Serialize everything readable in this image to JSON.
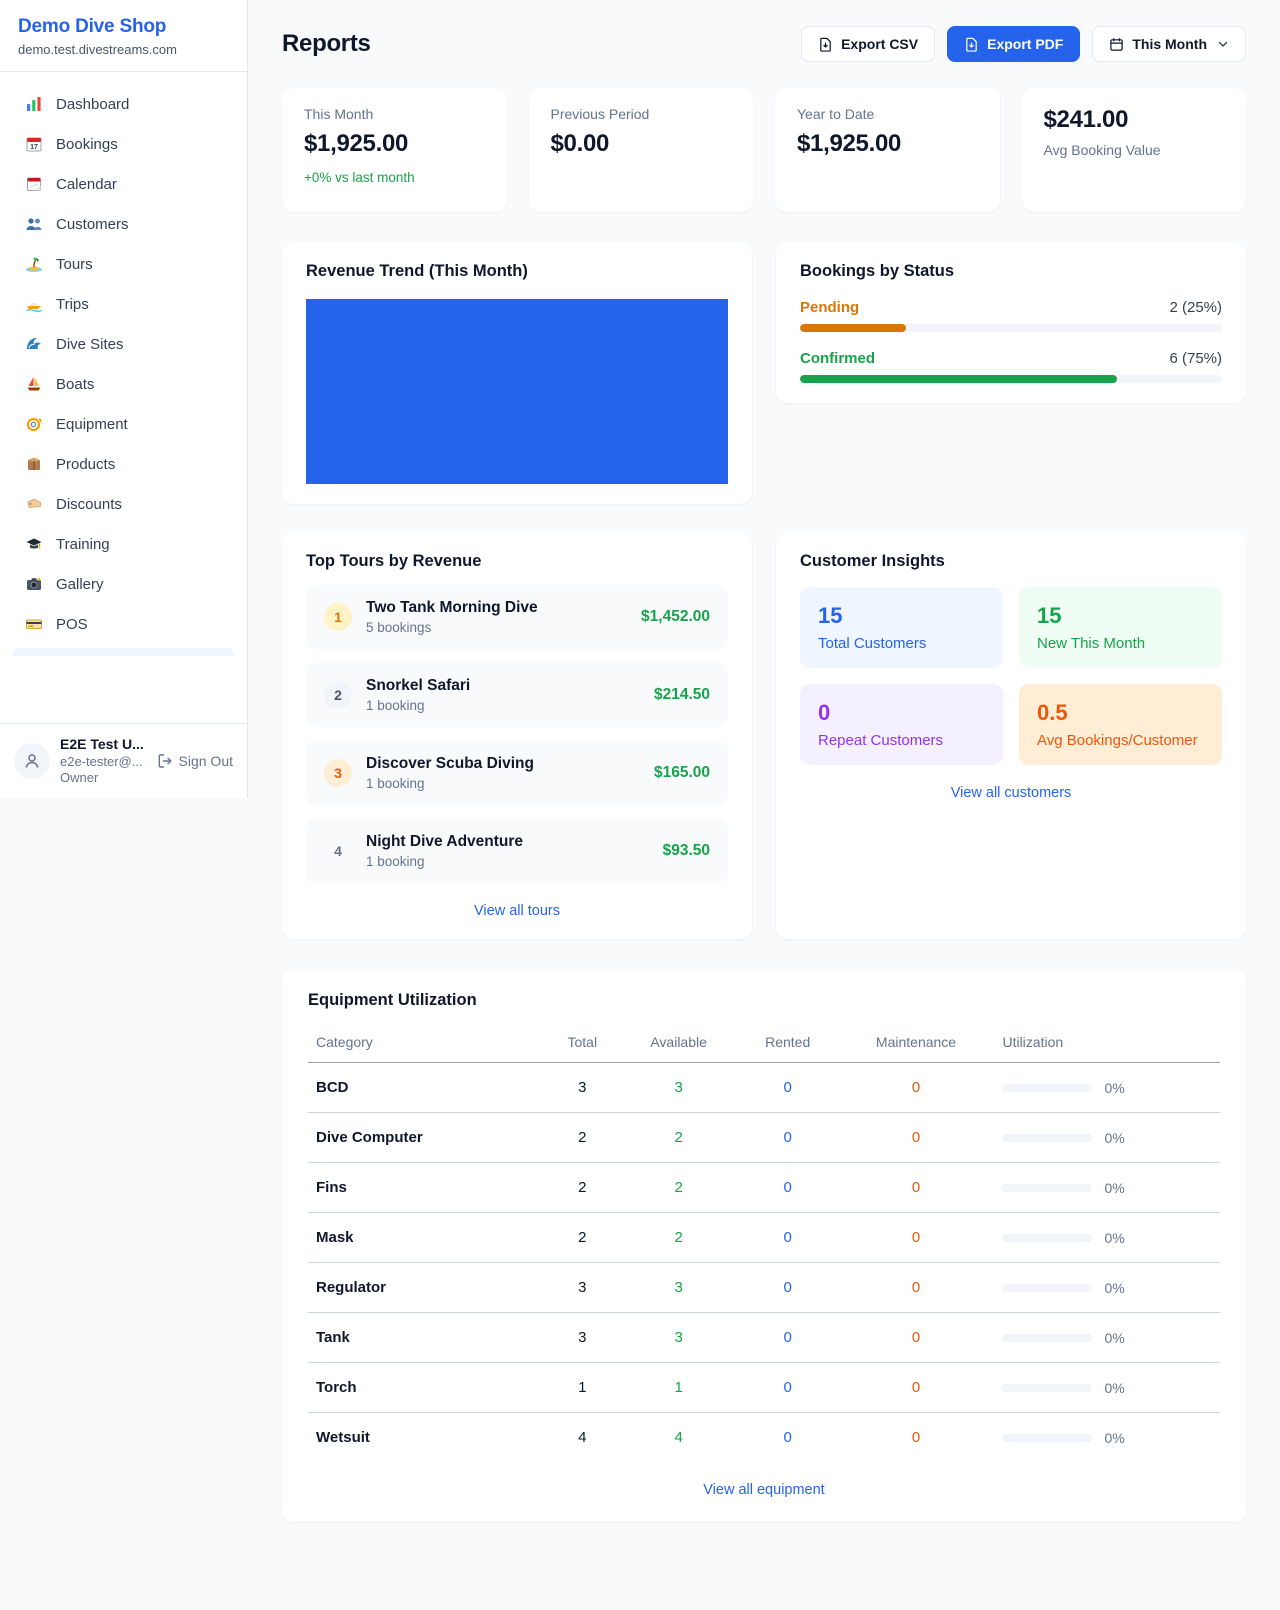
{
  "colors": {
    "accent_blue": "#2563eb",
    "green": "#16a34a",
    "orange": "#d97706",
    "deep_orange": "#ea580c",
    "purple": "#9333ea",
    "page_background": "#f8fafc"
  },
  "sidebar": {
    "shop_name": "Demo Dive Shop",
    "shop_domain": "demo.test.divestreams.com",
    "items": [
      {
        "label": "Dashboard",
        "icon": "bar-chart-icon"
      },
      {
        "label": "Bookings",
        "icon": "calendar-date-icon"
      },
      {
        "label": "Calendar",
        "icon": "tear-off-calendar-icon"
      },
      {
        "label": "Customers",
        "icon": "people-icon"
      },
      {
        "label": "Tours",
        "icon": "island-icon"
      },
      {
        "label": "Trips",
        "icon": "speedboat-icon"
      },
      {
        "label": "Dive Sites",
        "icon": "wave-icon"
      },
      {
        "label": "Boats",
        "icon": "sailboat-icon"
      },
      {
        "label": "Equipment",
        "icon": "dive-mask-icon"
      },
      {
        "label": "Products",
        "icon": "package-icon"
      },
      {
        "label": "Discounts",
        "icon": "tag-icon"
      },
      {
        "label": "Training",
        "icon": "graduation-cap-icon"
      },
      {
        "label": "Gallery",
        "icon": "camera-icon"
      },
      {
        "label": "POS",
        "icon": "credit-card-icon"
      }
    ],
    "user": {
      "name": "E2E Test U...",
      "email": "e2e-tester@...",
      "role": "Owner",
      "sign_out_label": "Sign Out"
    }
  },
  "header": {
    "title": "Reports",
    "export_csv_label": "Export CSV",
    "export_pdf_label": "Export PDF",
    "period_label": "This Month"
  },
  "stats": [
    {
      "label": "This Month",
      "value": "$1,925.00",
      "delta": "+0% vs last month"
    },
    {
      "label": "Previous Period",
      "value": "$0.00"
    },
    {
      "label": "Year to Date",
      "value": "$1,925.00"
    },
    {
      "label": "Avg Booking Value",
      "value": "$241.00"
    }
  ],
  "revenue_trend": {
    "title": "Revenue Trend (This Month)",
    "chart_note": "single solid filled area",
    "chart_color": "#2563eb"
  },
  "bookings_by_status": {
    "title": "Bookings by Status",
    "items": [
      {
        "label": "Pending",
        "value_text": "2 (25%)",
        "percent": 25,
        "color": "#d97706"
      },
      {
        "label": "Confirmed",
        "value_text": "6 (75%)",
        "percent": 75,
        "color": "#16a34a"
      }
    ]
  },
  "top_tours": {
    "title": "Top Tours by Revenue",
    "link_label": "View all tours",
    "items": [
      {
        "rank": "1",
        "name": "Two Tank Morning Dive",
        "bookings": "5 bookings",
        "revenue": "$1,452.00"
      },
      {
        "rank": "2",
        "name": "Snorkel Safari",
        "bookings": "1 booking",
        "revenue": "$214.50"
      },
      {
        "rank": "3",
        "name": "Discover Scuba Diving",
        "bookings": "1 booking",
        "revenue": "$165.00"
      },
      {
        "rank": "4",
        "name": "Night Dive Adventure",
        "bookings": "1 booking",
        "revenue": "$93.50"
      }
    ]
  },
  "customer_insights": {
    "title": "Customer Insights",
    "link_label": "View all customers",
    "tiles": [
      {
        "value": "15",
        "label": "Total Customers",
        "color": "#2563eb",
        "bg": "#eff6ff"
      },
      {
        "value": "15",
        "label": "New This Month",
        "color": "#16a34a",
        "bg": "#f0fdf4"
      },
      {
        "value": "0",
        "label": "Repeat Customers",
        "color": "#9333ea",
        "bg": "#f5f0fe"
      },
      {
        "value": "0.5",
        "label": "Avg Bookings/Customer",
        "color": "#ea580c",
        "bg": "#ffedd5"
      }
    ]
  },
  "equipment": {
    "title": "Equipment Utilization",
    "link_label": "View all equipment",
    "columns": [
      "Category",
      "Total",
      "Available",
      "Rented",
      "Maintenance",
      "Utilization"
    ],
    "rows": [
      {
        "category": "BCD",
        "total": "3",
        "available": "3",
        "rented": "0",
        "maintenance": "0",
        "utilization_percent": 0,
        "utilization_text": "0%"
      },
      {
        "category": "Dive Computer",
        "total": "2",
        "available": "2",
        "rented": "0",
        "maintenance": "0",
        "utilization_percent": 0,
        "utilization_text": "0%"
      },
      {
        "category": "Fins",
        "total": "2",
        "available": "2",
        "rented": "0",
        "maintenance": "0",
        "utilization_percent": 0,
        "utilization_text": "0%"
      },
      {
        "category": "Mask",
        "total": "2",
        "available": "2",
        "rented": "0",
        "maintenance": "0",
        "utilization_percent": 0,
        "utilization_text": "0%"
      },
      {
        "category": "Regulator",
        "total": "3",
        "available": "3",
        "rented": "0",
        "maintenance": "0",
        "utilization_percent": 0,
        "utilization_text": "0%"
      },
      {
        "category": "Tank",
        "total": "3",
        "available": "3",
        "rented": "0",
        "maintenance": "0",
        "utilization_percent": 0,
        "utilization_text": "0%"
      },
      {
        "category": "Torch",
        "total": "1",
        "available": "1",
        "rented": "0",
        "maintenance": "0",
        "utilization_percent": 0,
        "utilization_text": "0%"
      },
      {
        "category": "Wetsuit",
        "total": "4",
        "available": "4",
        "rented": "0",
        "maintenance": "0",
        "utilization_percent": 0,
        "utilization_text": "0%"
      }
    ]
  }
}
